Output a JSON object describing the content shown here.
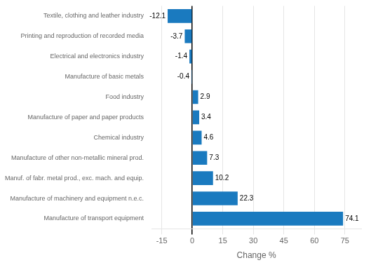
{
  "chart_data": {
    "type": "bar",
    "orientation": "horizontal",
    "categories": [
      "Textile, clothing and leather industry",
      "Printing and reproduction of recorded media",
      "Electrical and electronics industry",
      "Manufacture of basic metals",
      "Food industry",
      "Manufacture of paper and paper products",
      "Chemical industry",
      "Manufacture of other non-metallic mineral prod.",
      "Manuf. of fabr. metal prod., exc. mach. and equip.",
      "Manufacture of machinery and equipment n.e.c.",
      "Manufacture of transport equipment"
    ],
    "values": [
      -12.1,
      -3.7,
      -1.4,
      -0.4,
      2.9,
      3.4,
      4.6,
      7.3,
      10.2,
      22.3,
      74.1
    ],
    "color": "#1a7abf",
    "xlabel": "Change %",
    "xlim": [
      -20,
      83
    ],
    "xticks": [
      -15,
      0,
      15,
      30,
      45,
      60,
      75
    ],
    "grid": true,
    "data_labels": true
  }
}
